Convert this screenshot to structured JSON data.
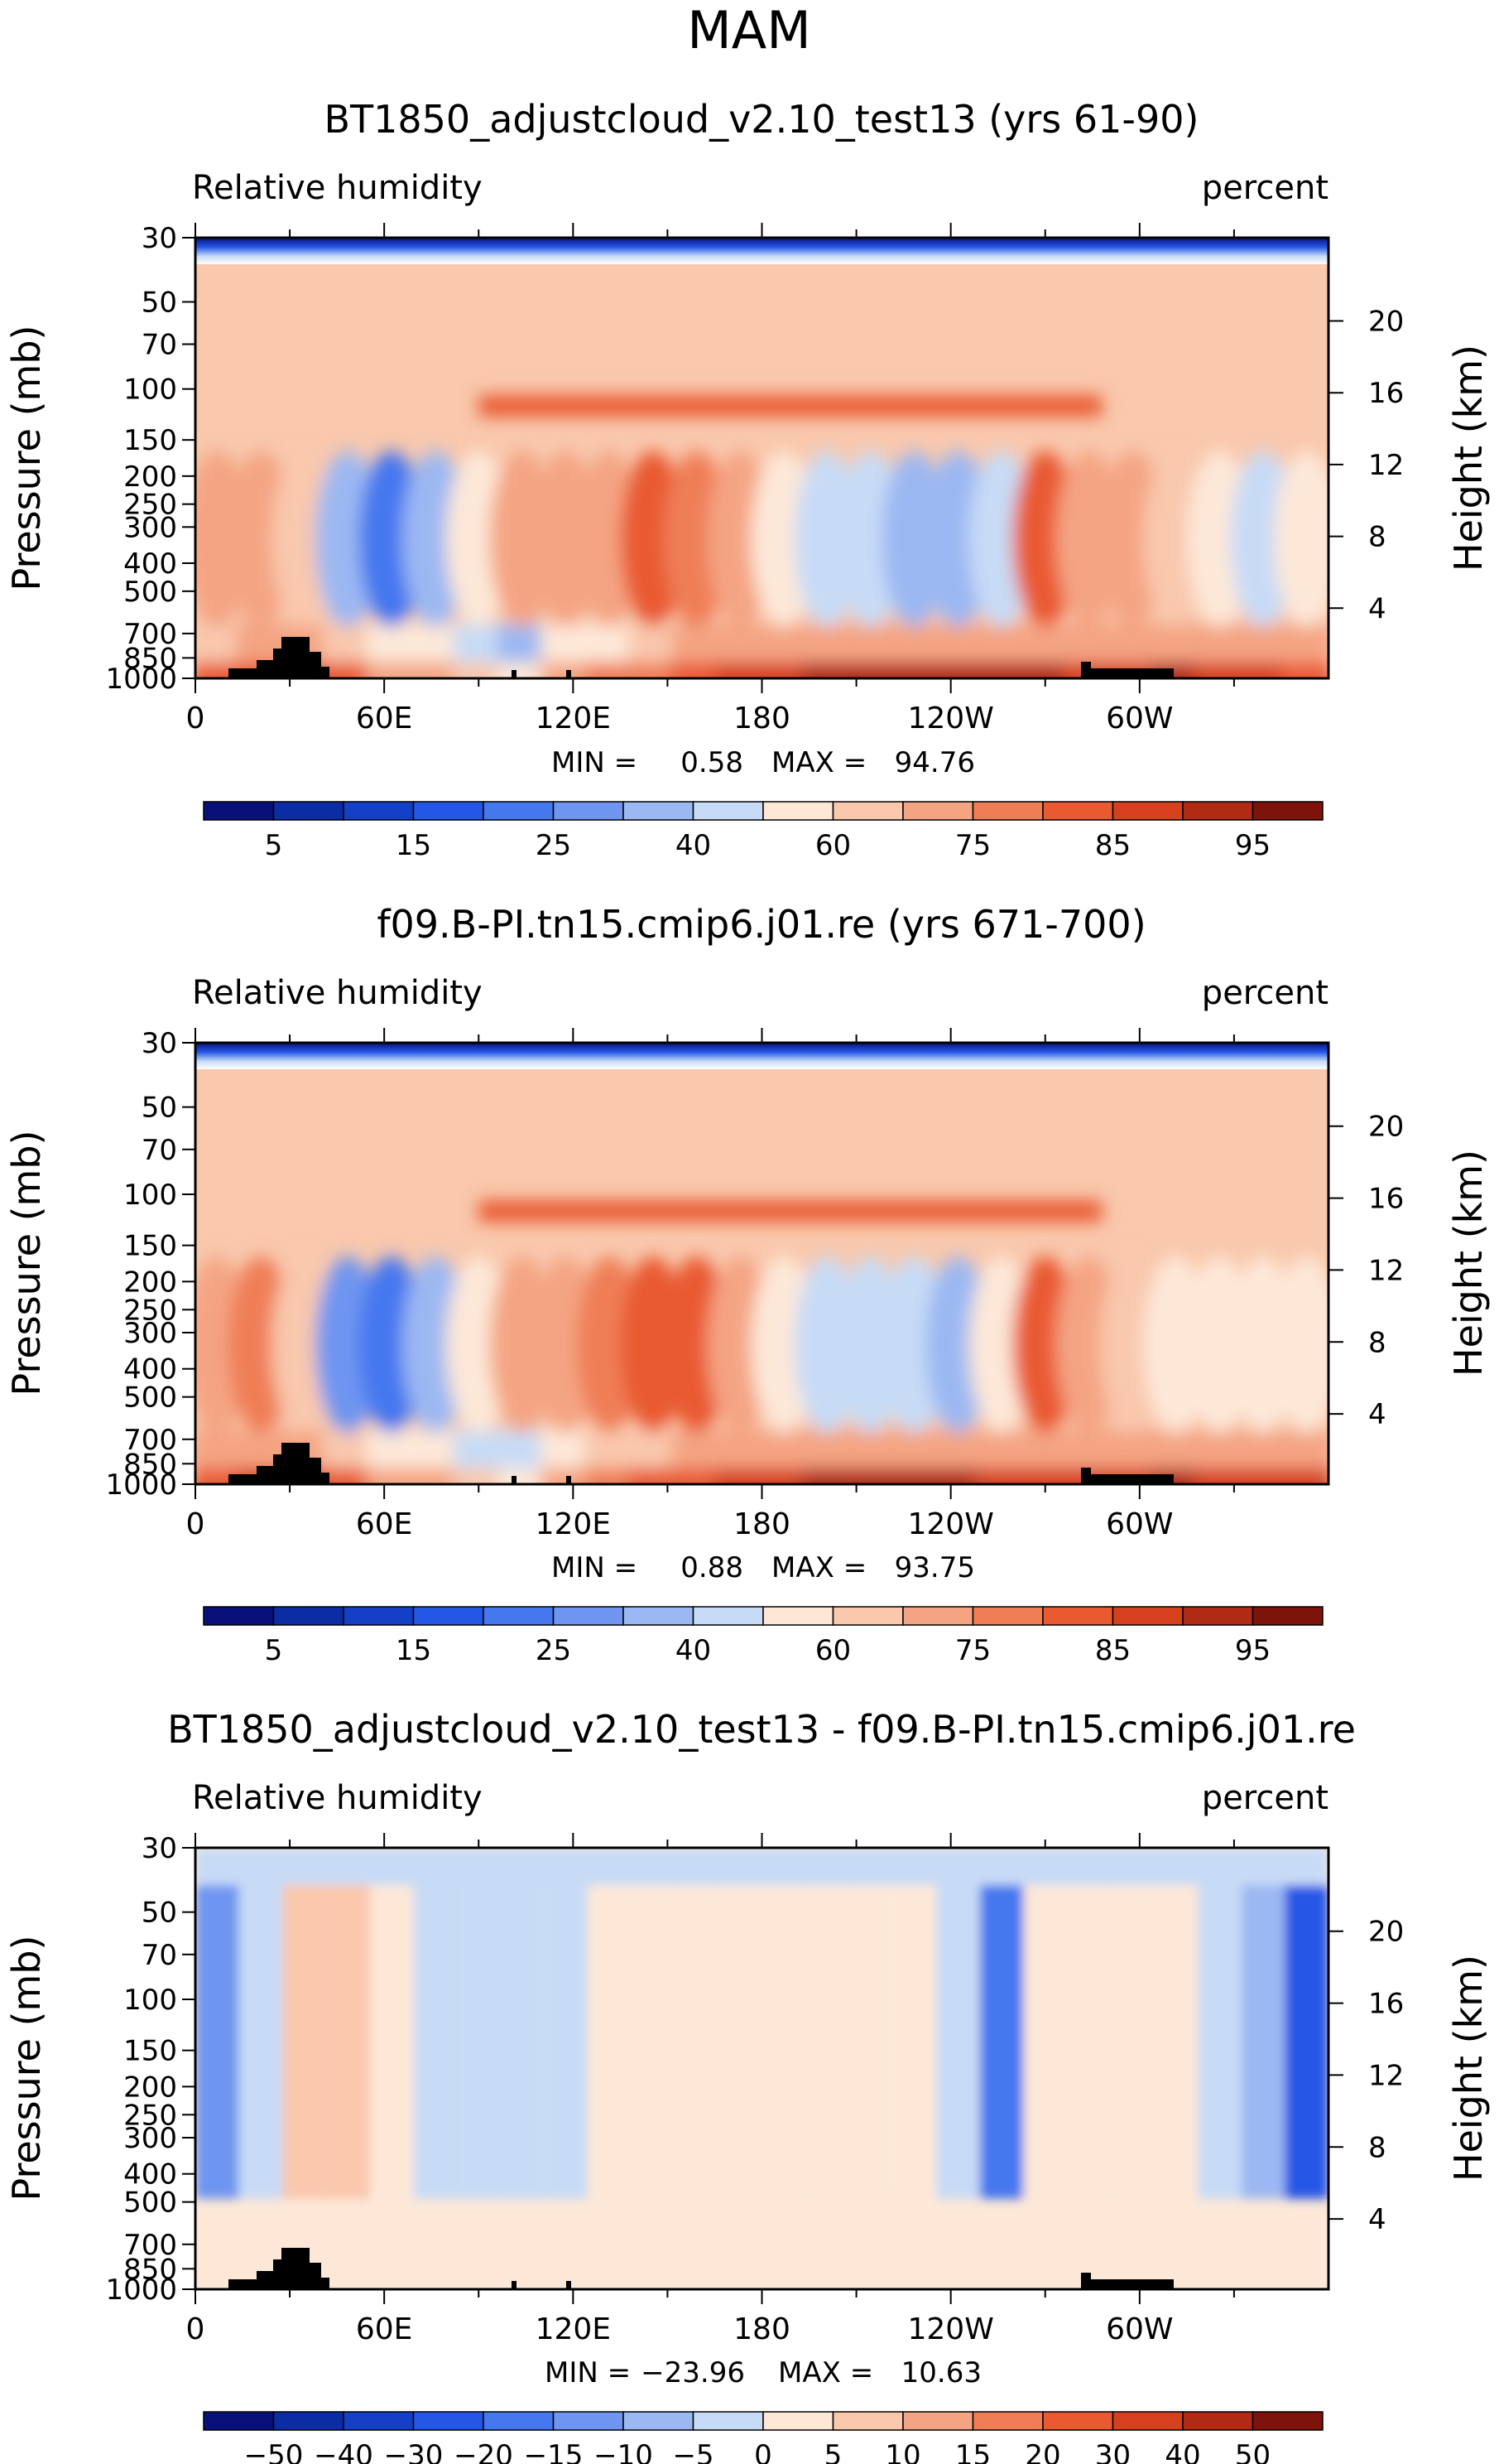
{
  "figure_title": "MAM",
  "chart_data": [
    {
      "type": "heatmap",
      "title": "BT1850_adjustcloud_v2.10_test13 (yrs 61-90)",
      "left_label": "Relative humidity",
      "right_label": "percent",
      "ylabel": "Pressure (mb)",
      "ylabel_right": "Height (km)",
      "xtick_labels": [
        "0",
        "60E",
        "120E",
        "180",
        "120W",
        "60W"
      ],
      "ytick_labels": [
        "30",
        "50",
        "70",
        "100",
        "150",
        "200",
        "250",
        "300",
        "400",
        "500",
        "700",
        "850",
        "1000"
      ],
      "height_tick_labels": [
        "20",
        "16",
        "12",
        "8",
        "4"
      ],
      "min_label": "MIN =",
      "min_value": "0.58",
      "max_label": "MAX =",
      "max_value": "94.76",
      "colorbar_labels": [
        "5",
        "15",
        "25",
        "40",
        "60",
        "75",
        "85",
        "95"
      ],
      "colorbar_colors": [
        "#08117a",
        "#0c2ca6",
        "#1440c8",
        "#2557e6",
        "#4577ef",
        "#6e95f0",
        "#9cb8f2",
        "#c7dbf6",
        "#fde8d8",
        "#f9c8ad",
        "#f4a483",
        "#ef7e57",
        "#e95a31",
        "#d6401c",
        "#b02a14",
        "#7e130b"
      ],
      "zonal_humidity": [
        82,
        84,
        88,
        80,
        74,
        70,
        60,
        55,
        72,
        76,
        78,
        84,
        86,
        88,
        90,
        91,
        92,
        92,
        91,
        90,
        88,
        88,
        92,
        89,
        86,
        84
      ],
      "midlevel_humidity": [
        70,
        74,
        62,
        30,
        22,
        34,
        56,
        66,
        70,
        74,
        80,
        78,
        70,
        58,
        46,
        40,
        36,
        30,
        44,
        80,
        72,
        66,
        62,
        56,
        48,
        56
      ]
    },
    {
      "type": "heatmap",
      "title": "f09.B-PI.tn15.cmip6.j01.re (yrs 671-700)",
      "left_label": "Relative humidity",
      "right_label": "percent",
      "ylabel": "Pressure (mb)",
      "ylabel_right": "Height (km)",
      "xtick_labels": [
        "0",
        "60E",
        "120E",
        "180",
        "120W",
        "60W"
      ],
      "ytick_labels": [
        "30",
        "50",
        "70",
        "100",
        "150",
        "200",
        "250",
        "300",
        "400",
        "500",
        "700",
        "850",
        "1000"
      ],
      "height_tick_labels": [
        "20",
        "16",
        "12",
        "8",
        "4"
      ],
      "min_label": "MIN =",
      "min_value": "0.88",
      "max_label": "MAX =",
      "max_value": "93.75",
      "colorbar_labels": [
        "5",
        "15",
        "25",
        "40",
        "60",
        "75",
        "85",
        "95"
      ],
      "colorbar_colors": [
        "#08117a",
        "#0c2ca6",
        "#1440c8",
        "#2557e6",
        "#4577ef",
        "#6e95f0",
        "#9cb8f2",
        "#c7dbf6",
        "#fde8d8",
        "#f9c8ad",
        "#f4a483",
        "#ef7e57",
        "#e95a31",
        "#d6401c",
        "#b02a14",
        "#7e130b"
      ],
      "zonal_humidity": [
        84,
        86,
        88,
        82,
        74,
        70,
        62,
        58,
        72,
        78,
        80,
        84,
        86,
        88,
        90,
        90,
        90,
        90,
        89,
        88,
        86,
        88,
        90,
        89,
        88,
        86
      ],
      "midlevel_humidity": [
        72,
        76,
        64,
        28,
        24,
        36,
        58,
        66,
        72,
        76,
        82,
        80,
        72,
        56,
        44,
        40,
        40,
        38,
        50,
        82,
        72,
        62,
        58,
        56,
        54,
        58
      ]
    },
    {
      "type": "heatmap",
      "title": "BT1850_adjustcloud_v2.10_test13 - f09.B-PI.tn15.cmip6.j01.re",
      "left_label": "Relative humidity",
      "right_label": "percent",
      "ylabel": "Pressure (mb)",
      "ylabel_right": "Height (km)",
      "xtick_labels": [
        "0",
        "60E",
        "120E",
        "180",
        "120W",
        "60W"
      ],
      "ytick_labels": [
        "30",
        "50",
        "70",
        "100",
        "150",
        "200",
        "250",
        "300",
        "400",
        "500",
        "700",
        "850",
        "1000"
      ],
      "height_tick_labels": [
        "20",
        "16",
        "12",
        "8",
        "4"
      ],
      "min_label": "MIN =",
      "min_value": "−23.96",
      "max_label": "MAX =",
      "max_value": "10.63",
      "colorbar_labels": [
        "−50",
        "−40",
        "−30",
        "−20",
        "−15",
        "−10",
        "−5",
        "0",
        "5",
        "10",
        "15",
        "20",
        "30",
        "40",
        "50"
      ],
      "colorbar_colors": [
        "#08117a",
        "#0c2ca6",
        "#1440c8",
        "#2557e6",
        "#4577ef",
        "#6e95f0",
        "#9cb8f2",
        "#c7dbf6",
        "#fde8d8",
        "#f9c8ad",
        "#f4a483",
        "#ef7e57",
        "#e95a31",
        "#d6401c",
        "#b02a14",
        "#7e130b"
      ],
      "diff_midlevel": [
        -12,
        -4,
        6,
        8,
        2,
        -2,
        -4,
        -3,
        -2,
        2,
        1,
        2,
        2,
        3,
        2,
        1,
        4,
        -2,
        -16,
        1,
        4,
        2,
        1,
        -3,
        -10,
        -22
      ]
    }
  ]
}
